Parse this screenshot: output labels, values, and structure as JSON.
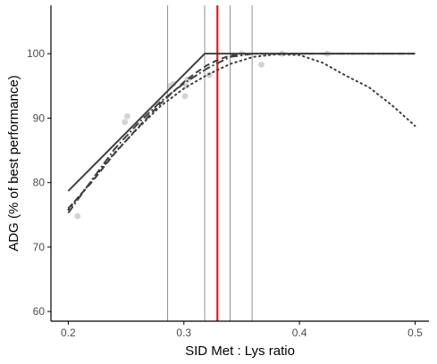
{
  "chart_data": {
    "type": "scatter",
    "xlabel": "SID Met : Lys ratio",
    "ylabel": "ADG (% of best performance)",
    "xlim": [
      0.185,
      0.512
    ],
    "ylim": [
      58.5,
      107.5
    ],
    "xticks": [
      0.2,
      0.3,
      0.4,
      0.5
    ],
    "xtick_labels": [
      "0.2",
      "0.3",
      "0.4",
      "0.5"
    ],
    "yticks": [
      60,
      70,
      80,
      90,
      100
    ],
    "ytick_labels": [
      "60",
      "70",
      "80",
      "90",
      "100"
    ],
    "grid": false,
    "legend": "none",
    "points": {
      "color": "#d3d3d3",
      "x": [
        0.208,
        0.249,
        0.251,
        0.288,
        0.291,
        0.301,
        0.302,
        0.303,
        0.322,
        0.35,
        0.367,
        0.385,
        0.424
      ],
      "y": [
        74.8,
        89.4,
        90.3,
        95.0,
        95.3,
        93.4,
        95.0,
        96.0,
        96.7,
        100.0,
        98.3,
        100.0,
        100.0
      ]
    },
    "lines": [
      {
        "style": "solid",
        "color": "#404040",
        "x": [
          0.2,
          0.318,
          0.5
        ],
        "y": [
          78.7,
          100.0,
          100.0
        ]
      },
      {
        "style": "dashed",
        "color": "#404040",
        "x": [
          0.2,
          0.22,
          0.24,
          0.26,
          0.28,
          0.3,
          0.31,
          0.32,
          0.33,
          0.34,
          0.35,
          0.5
        ],
        "y": [
          76.0,
          80.0,
          84.5,
          88.5,
          92.3,
          95.6,
          97.0,
          98.2,
          99.1,
          99.7,
          100.0,
          100.0
        ]
      },
      {
        "style": "dashdot",
        "color": "#404040",
        "x": [
          0.2,
          0.22,
          0.24,
          0.26,
          0.28,
          0.3,
          0.32,
          0.34,
          0.36,
          0.5
        ],
        "y": [
          75.3,
          80.3,
          85.2,
          89.1,
          92.6,
          95.4,
          97.7,
          99.5,
          100.0,
          100.0
        ]
      },
      {
        "style": "dotted",
        "color": "#404040",
        "x": [
          0.2,
          0.22,
          0.24,
          0.26,
          0.28,
          0.3,
          0.32,
          0.34,
          0.36,
          0.38,
          0.4,
          0.42,
          0.44,
          0.46,
          0.48,
          0.5
        ],
        "y": [
          75.8,
          80.2,
          84.6,
          88.4,
          91.9,
          94.6,
          96.7,
          98.4,
          99.5,
          99.9,
          99.8,
          98.6,
          96.6,
          94.8,
          92.0,
          88.8
        ]
      }
    ],
    "vlines": [
      {
        "x": 0.286,
        "color": "#777777",
        "width": 0.8
      },
      {
        "x": 0.318,
        "color": "#777777",
        "width": 0.8
      },
      {
        "x": 0.329,
        "color": "#e41a1c",
        "width": 2.2
      },
      {
        "x": 0.34,
        "color": "#777777",
        "width": 0.8
      },
      {
        "x": 0.359,
        "color": "#777777",
        "width": 0.8
      }
    ]
  }
}
